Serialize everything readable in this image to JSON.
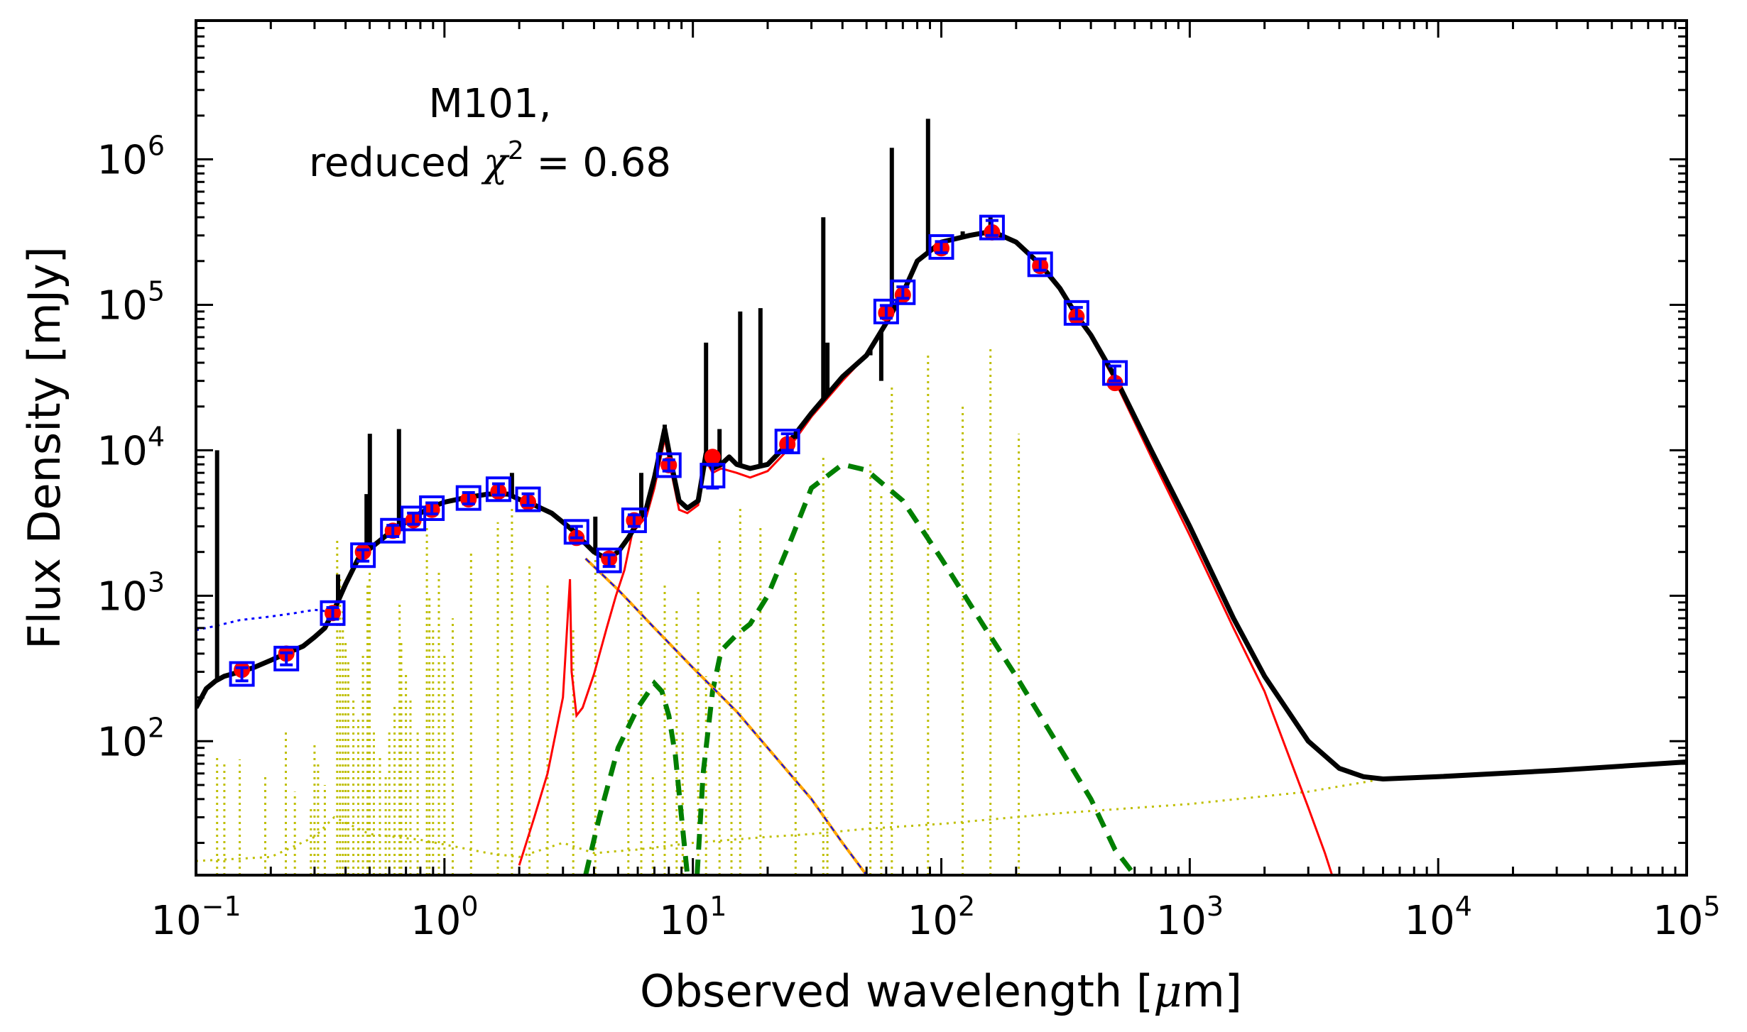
{
  "chart_data": {
    "type": "line",
    "xlabel_pre": "Observed wavelength [",
    "xlabel_mu": "μ",
    "xlabel_post": "m]",
    "ylabel": "Flux Density [mJy]",
    "xscale": "log",
    "yscale": "log",
    "xlim": [
      0.1,
      100000
    ],
    "ylim": [
      12,
      9000000
    ],
    "x_ticks": [
      {
        "base": "10",
        "exp": "−1",
        "value": 0.1
      },
      {
        "base": "10",
        "exp": "0",
        "value": 1
      },
      {
        "base": "10",
        "exp": "1",
        "value": 10
      },
      {
        "base": "10",
        "exp": "2",
        "value": 100
      },
      {
        "base": "10",
        "exp": "3",
        "value": 1000
      },
      {
        "base": "10",
        "exp": "4",
        "value": 10000
      },
      {
        "base": "10",
        "exp": "5",
        "value": 100000
      }
    ],
    "y_ticks": [
      {
        "base": "10",
        "exp": "2",
        "value": 100
      },
      {
        "base": "10",
        "exp": "3",
        "value": 1000
      },
      {
        "base": "10",
        "exp": "4",
        "value": 10000
      },
      {
        "base": "10",
        "exp": "5",
        "value": 100000
      },
      {
        "base": "10",
        "exp": "6",
        "value": 1000000
      }
    ],
    "annotation": {
      "line1": "M101,",
      "line2_pre": "reduced ",
      "line2_chi": "χ",
      "line2_sup": "2",
      "line2_post": " = 0.68"
    },
    "colors": {
      "total": "#000000",
      "stellar_attenuated": "#ff0000",
      "stellar_unattenuated": "#0000ff",
      "nebular": "#bfbf00",
      "dust": "#007f00",
      "synchrotron": "#ffa500",
      "observed_marker": "#0000ff",
      "model_marker": "#ff0000"
    },
    "observed": [
      {
        "x": 0.153,
        "y": 290,
        "err": 30
      },
      {
        "x": 0.231,
        "y": 370,
        "err": 35
      },
      {
        "x": 0.355,
        "y": 760,
        "err": 70
      },
      {
        "x": 0.47,
        "y": 1900,
        "err": 170
      },
      {
        "x": 0.62,
        "y": 2800,
        "err": 250
      },
      {
        "x": 0.75,
        "y": 3400,
        "err": 300
      },
      {
        "x": 0.89,
        "y": 4000,
        "err": 350
      },
      {
        "x": 1.25,
        "y": 4700,
        "err": 420
      },
      {
        "x": 1.65,
        "y": 5400,
        "err": 480
      },
      {
        "x": 2.17,
        "y": 4600,
        "err": 420
      },
      {
        "x": 3.4,
        "y": 2750,
        "err": 250
      },
      {
        "x": 4.6,
        "y": 1750,
        "err": 160
      },
      {
        "x": 5.8,
        "y": 3300,
        "err": 300
      },
      {
        "x": 8.0,
        "y": 7900,
        "err": 700
      },
      {
        "x": 12.0,
        "y": 6700,
        "err": 1200
      },
      {
        "x": 24.0,
        "y": 11500,
        "err": 1500
      },
      {
        "x": 60.0,
        "y": 90000,
        "err": 9000
      },
      {
        "x": 70.0,
        "y": 122000,
        "err": 11000
      },
      {
        "x": 100.0,
        "y": 250000,
        "err": 22000
      },
      {
        "x": 160.0,
        "y": 340000,
        "err": 40000
      },
      {
        "x": 250.0,
        "y": 190000,
        "err": 17000
      },
      {
        "x": 350.0,
        "y": 88000,
        "err": 8000
      },
      {
        "x": 500.0,
        "y": 34000,
        "err": 4000
      }
    ],
    "model_points": [
      {
        "x": 0.153,
        "y": 310
      },
      {
        "x": 0.231,
        "y": 400
      },
      {
        "x": 0.355,
        "y": 760
      },
      {
        "x": 0.47,
        "y": 2000
      },
      {
        "x": 0.62,
        "y": 2800
      },
      {
        "x": 0.75,
        "y": 3300
      },
      {
        "x": 0.89,
        "y": 3900
      },
      {
        "x": 1.25,
        "y": 4600
      },
      {
        "x": 1.65,
        "y": 5200
      },
      {
        "x": 2.17,
        "y": 4400
      },
      {
        "x": 3.4,
        "y": 2500
      },
      {
        "x": 4.6,
        "y": 1800
      },
      {
        "x": 5.8,
        "y": 3300
      },
      {
        "x": 8.0,
        "y": 7900
      },
      {
        "x": 12.0,
        "y": 9000
      },
      {
        "x": 24.0,
        "y": 11000
      },
      {
        "x": 60.0,
        "y": 88000
      },
      {
        "x": 70.0,
        "y": 117000
      },
      {
        "x": 100.0,
        "y": 245000
      },
      {
        "x": 160.0,
        "y": 315000
      },
      {
        "x": 250.0,
        "y": 185000
      },
      {
        "x": 350.0,
        "y": 83000
      },
      {
        "x": 500.0,
        "y": 29000
      }
    ],
    "total_model": [
      [
        0.1,
        170
      ],
      [
        0.11,
        230
      ],
      [
        0.12,
        260
      ],
      [
        0.13,
        280
      ],
      [
        0.15,
        300
      ],
      [
        0.17,
        320
      ],
      [
        0.2,
        360
      ],
      [
        0.23,
        400
      ],
      [
        0.27,
        450
      ],
      [
        0.3,
        520
      ],
      [
        0.33,
        600
      ],
      [
        0.36,
        800
      ],
      [
        0.4,
        1200
      ],
      [
        0.45,
        1800
      ],
      [
        0.5,
        2100
      ],
      [
        0.6,
        2700
      ],
      [
        0.7,
        3200
      ],
      [
        0.8,
        3700
      ],
      [
        0.9,
        4100
      ],
      [
        1.0,
        4400
      ],
      [
        1.2,
        4700
      ],
      [
        1.5,
        5000
      ],
      [
        1.8,
        5000
      ],
      [
        2.0,
        4600
      ],
      [
        2.3,
        4200
      ],
      [
        2.7,
        3700
      ],
      [
        3.0,
        3200
      ],
      [
        3.3,
        2800
      ],
      [
        3.5,
        2500
      ],
      [
        4.0,
        2000
      ],
      [
        4.5,
        1800
      ],
      [
        5.0,
        2000
      ],
      [
        5.5,
        2500
      ],
      [
        6.0,
        3200
      ],
      [
        6.5,
        4000
      ],
      [
        7.0,
        6500
      ],
      [
        7.7,
        14000
      ],
      [
        8.2,
        8000
      ],
      [
        8.8,
        4500
      ],
      [
        9.5,
        4000
      ],
      [
        10.5,
        4500
      ],
      [
        11.3,
        9500
      ],
      [
        12.0,
        7500
      ],
      [
        13.0,
        8000
      ],
      [
        14.0,
        9000
      ],
      [
        15.0,
        8000
      ],
      [
        17.0,
        7500
      ],
      [
        20.0,
        8000
      ],
      [
        24.0,
        11000
      ],
      [
        30.0,
        18000
      ],
      [
        40.0,
        32000
      ],
      [
        50.0,
        45000
      ],
      [
        60.0,
        75000
      ],
      [
        70.0,
        120000
      ],
      [
        80.0,
        200000
      ],
      [
        100.0,
        270000
      ],
      [
        130.0,
        300000
      ],
      [
        160.0,
        320000
      ],
      [
        200.0,
        270000
      ],
      [
        250.0,
        190000
      ],
      [
        300.0,
        130000
      ],
      [
        350.0,
        85000
      ],
      [
        400.0,
        62000
      ],
      [
        500.0,
        32000
      ],
      [
        700.0,
        10000
      ],
      [
        1000.0,
        3000
      ],
      [
        1500.0,
        700
      ],
      [
        2000.0,
        280
      ],
      [
        3000.0,
        100
      ],
      [
        4000.0,
        65
      ],
      [
        5000.0,
        57
      ],
      [
        6000.0,
        55
      ],
      [
        10000.0,
        57
      ],
      [
        30000.0,
        63
      ],
      [
        100000.0,
        72
      ]
    ],
    "total_lines": [
      [
        0.1216,
        10000
      ],
      [
        0.373,
        1400
      ],
      [
        0.486,
        5000
      ],
      [
        0.501,
        13000
      ],
      [
        0.6563,
        14000
      ],
      [
        0.672,
        3000
      ],
      [
        1.87,
        7000
      ],
      [
        4.05,
        3500
      ],
      [
        6.2,
        7000
      ],
      [
        7.7,
        15000
      ],
      [
        11.3,
        55000
      ],
      [
        12.8,
        14000
      ],
      [
        15.5,
        90000
      ],
      [
        18.7,
        95000
      ],
      [
        25.9,
        12000
      ],
      [
        33.5,
        400000
      ],
      [
        34.8,
        55000
      ],
      [
        51.8,
        45000
      ],
      [
        57.3,
        30000
      ],
      [
        63.2,
        1200000
      ],
      [
        88.4,
        1900000
      ],
      [
        121.9,
        320000
      ],
      [
        157.7,
        400000
      ]
    ],
    "attenuated_stellar": [
      [
        2.0,
        14
      ],
      [
        2.3,
        30
      ],
      [
        2.6,
        60
      ],
      [
        3.0,
        200
      ],
      [
        3.2,
        1300
      ],
      [
        3.25,
        300
      ],
      [
        3.4,
        150
      ],
      [
        3.6,
        170
      ],
      [
        4.0,
        290
      ],
      [
        4.5,
        600
      ],
      [
        4.9,
        1000
      ],
      [
        5.3,
        1500
      ],
      [
        5.7,
        2700
      ],
      [
        6.0,
        3000
      ],
      [
        6.5,
        3500
      ],
      [
        7.0,
        5500
      ],
      [
        7.7,
        12000
      ],
      [
        8.2,
        7000
      ],
      [
        8.8,
        3900
      ],
      [
        9.5,
        3700
      ],
      [
        10.5,
        4200
      ],
      [
        11.3,
        8500
      ],
      [
        12.0,
        7000
      ],
      [
        13.0,
        7500
      ],
      [
        15.0,
        7000
      ],
      [
        17.0,
        6500
      ],
      [
        20.0,
        7200
      ],
      [
        24.0,
        10000
      ],
      [
        30.0,
        17000
      ],
      [
        40.0,
        30000
      ],
      [
        50.0,
        45000
      ],
      [
        60.0,
        75000
      ],
      [
        70.0,
        120000
      ],
      [
        80.0,
        200000
      ],
      [
        100.0,
        265000
      ],
      [
        130.0,
        300000
      ],
      [
        160.0,
        315000
      ],
      [
        200.0,
        265000
      ],
      [
        250.0,
        185000
      ],
      [
        300.0,
        128000
      ],
      [
        350.0,
        82000
      ],
      [
        400.0,
        60000
      ],
      [
        500.0,
        30000
      ],
      [
        700.0,
        9000
      ],
      [
        1000.0,
        2600
      ],
      [
        1500.0,
        600
      ],
      [
        2000.0,
        220
      ],
      [
        2500.0,
        80
      ],
      [
        3000.0,
        35
      ],
      [
        3500.0,
        17
      ],
      [
        3800.0,
        11
      ]
    ],
    "unattenuated_stellar": [
      [
        0.1,
        580
      ],
      [
        0.12,
        620
      ],
      [
        0.15,
        680
      ],
      [
        0.2,
        720
      ],
      [
        0.25,
        760
      ],
      [
        0.3,
        800
      ],
      [
        0.34,
        780
      ]
    ],
    "nebular_lines": [
      [
        0.1216,
        80
      ],
      [
        0.13,
        70
      ],
      [
        0.15,
        75
      ],
      [
        0.19,
        60
      ],
      [
        0.23,
        120
      ],
      [
        0.25,
        45
      ],
      [
        0.29,
        35
      ],
      [
        0.3,
        100
      ],
      [
        0.31,
        70
      ],
      [
        0.33,
        50
      ],
      [
        0.37,
        2500
      ],
      [
        0.38,
        1300
      ],
      [
        0.39,
        800
      ],
      [
        0.4,
        500
      ],
      [
        0.41,
        350
      ],
      [
        0.43,
        200
      ],
      [
        0.45,
        150
      ],
      [
        0.47,
        400
      ],
      [
        0.49,
        1200
      ],
      [
        0.5,
        1500
      ],
      [
        0.52,
        120
      ],
      [
        0.55,
        80
      ],
      [
        0.58,
        60
      ],
      [
        0.6,
        120
      ],
      [
        0.63,
        180
      ],
      [
        0.66,
        900
      ],
      [
        0.67,
        500
      ],
      [
        0.7,
        300
      ],
      [
        0.73,
        200
      ],
      [
        0.78,
        120
      ],
      [
        0.85,
        3000
      ],
      [
        0.87,
        1000
      ],
      [
        0.9,
        600
      ],
      [
        0.95,
        1500
      ],
      [
        1.0,
        400
      ],
      [
        1.08,
        700
      ],
      [
        1.28,
        2000
      ],
      [
        1.64,
        3200
      ],
      [
        1.87,
        4000
      ],
      [
        2.2,
        1600
      ],
      [
        2.6,
        1200
      ],
      [
        3.3,
        600
      ],
      [
        4.05,
        2200
      ],
      [
        5.5,
        900
      ],
      [
        6.2,
        2500
      ],
      [
        6.9,
        60
      ],
      [
        7.7,
        1200
      ],
      [
        8.6,
        800
      ],
      [
        9.1,
        120
      ],
      [
        10.5,
        1100
      ],
      [
        11.3,
        280
      ],
      [
        12.8,
        2500
      ],
      [
        14.3,
        300
      ],
      [
        15.5,
        4000
      ],
      [
        18.7,
        3000
      ],
      [
        25.9,
        1500
      ],
      [
        33.5,
        9000
      ],
      [
        34.8,
        30
      ],
      [
        51.8,
        8000
      ],
      [
        57.3,
        5000
      ],
      [
        63.2,
        28000
      ],
      [
        88.4,
        45000
      ],
      [
        121.9,
        20000
      ],
      [
        157.7,
        50000
      ],
      [
        205.0,
        13000
      ]
    ],
    "nebular_continuum": [
      [
        0.1,
        15
      ],
      [
        0.2,
        16
      ],
      [
        0.3,
        22
      ],
      [
        0.36,
        30
      ],
      [
        0.5,
        23
      ],
      [
        0.8,
        21
      ],
      [
        1.5,
        17
      ],
      [
        2.0,
        16
      ],
      [
        3.0,
        20
      ],
      [
        4.0,
        17
      ],
      [
        6.0,
        18
      ],
      [
        10.0,
        20
      ],
      [
        20.0,
        22
      ],
      [
        30.0,
        23
      ],
      [
        50.0,
        25
      ],
      [
        100.0,
        27
      ],
      [
        300.0,
        32
      ],
      [
        1000.0,
        37
      ],
      [
        3000.0,
        45
      ],
      [
        6000.0,
        55
      ]
    ],
    "dust_component_1": [
      [
        3.7,
        12
      ],
      [
        4.2,
        30
      ],
      [
        5.0,
        90
      ],
      [
        6.0,
        170
      ],
      [
        7.0,
        250
      ],
      [
        7.5,
        220
      ],
      [
        8.0,
        150
      ],
      [
        8.5,
        80
      ],
      [
        9.0,
        30
      ],
      [
        9.5,
        12
      ]
    ],
    "dust_component_2": [
      [
        10.4,
        12
      ],
      [
        11.0,
        60
      ],
      [
        12.0,
        220
      ],
      [
        13.0,
        420
      ],
      [
        15.0,
        540
      ],
      [
        17.0,
        640
      ],
      [
        20.0,
        1000
      ],
      [
        25.0,
        2500
      ],
      [
        30.0,
        5500
      ],
      [
        40.0,
        8000
      ],
      [
        50.0,
        7300
      ],
      [
        70.0,
        4500
      ],
      [
        100.0,
        1800
      ],
      [
        150.0,
        600
      ],
      [
        200.0,
        280
      ],
      [
        300.0,
        90
      ],
      [
        400.0,
        40
      ],
      [
        500.0,
        18
      ],
      [
        600.0,
        12
      ]
    ],
    "synchrotron": [
      [
        3.7,
        1800
      ],
      [
        5.0,
        1100
      ],
      [
        7.0,
        600
      ],
      [
        10.0,
        320
      ],
      [
        15.0,
        160
      ],
      [
        20.0,
        90
      ],
      [
        30.0,
        40
      ],
      [
        40.0,
        20
      ],
      [
        50.0,
        12
      ]
    ]
  }
}
